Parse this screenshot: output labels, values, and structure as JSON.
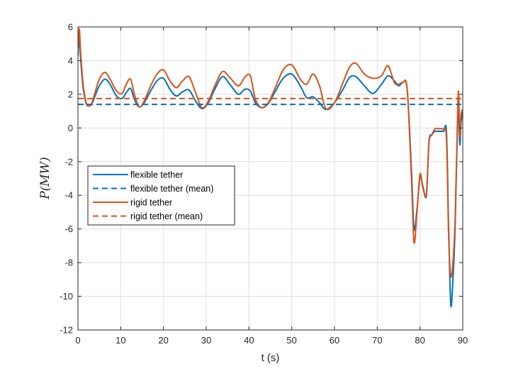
{
  "chart_data": {
    "type": "line",
    "title": "",
    "xlabel": "t (s)",
    "ylabel": "P(MW)",
    "xlim": [
      0,
      90
    ],
    "ylim": [
      -12,
      6
    ],
    "grid": true,
    "legend_position": "middle-left",
    "xticks": [
      0,
      10,
      20,
      30,
      40,
      50,
      60,
      70,
      80,
      90
    ],
    "yticks": [
      -12,
      -10,
      -8,
      -6,
      -4,
      -2,
      0,
      2,
      4,
      6
    ],
    "series": [
      {
        "name": "flexible tether",
        "color": "#0072BD",
        "style": "solid",
        "x": [
          0,
          0.3,
          0.6,
          0.9,
          1.2,
          1.6,
          2.0,
          2.5,
          3.2,
          4.0,
          5.0,
          6.3,
          7.5,
          9.0,
          10.3,
          11.3,
          12.3,
          13.2,
          14.3,
          15.5,
          17.0,
          18.5,
          20.0,
          21.5,
          23.0,
          24.5,
          26.0,
          27.5,
          29.0,
          30.5,
          32.0,
          33.8,
          35.5,
          37.5,
          39.0,
          40.3,
          41.5,
          43.0,
          44.5,
          46.0,
          48.0,
          50.0,
          52.0,
          53.5,
          55.0,
          56.5,
          58.0,
          60.0,
          62.0,
          63.5,
          65.0,
          67.0,
          69.0,
          71.0,
          72.5,
          74.0,
          75.0,
          76.0,
          77.0,
          78.0,
          78.6,
          79.3,
          80.0,
          80.7,
          81.5,
          82.1,
          82.8,
          83.5,
          84.5,
          85.5,
          86.2,
          86.7,
          87.2,
          87.7,
          88.2,
          88.7,
          89.0,
          89.3,
          89.6,
          90.0
        ],
        "y": [
          4.3,
          5.4,
          4.2,
          3.2,
          2.4,
          1.8,
          1.4,
          1.3,
          1.4,
          1.9,
          2.5,
          2.9,
          2.6,
          1.9,
          1.75,
          2.1,
          2.35,
          1.7,
          1.25,
          1.5,
          2.2,
          2.8,
          2.95,
          2.3,
          1.9,
          2.15,
          2.25,
          1.6,
          1.15,
          1.5,
          2.3,
          3.05,
          2.6,
          2.0,
          2.3,
          2.2,
          1.5,
          1.2,
          1.45,
          2.1,
          2.95,
          3.2,
          2.5,
          1.8,
          1.85,
          1.5,
          1.1,
          1.5,
          2.3,
          3.0,
          3.05,
          2.5,
          2.05,
          2.6,
          3.1,
          2.8,
          2.5,
          2.7,
          2.3,
          -2.5,
          -6.0,
          -4.8,
          -2.9,
          -3.5,
          -4.0,
          -0.8,
          -0.4,
          -0.2,
          -0.2,
          -0.2,
          -0.3,
          -6.0,
          -10.5,
          -9.0,
          -6.0,
          -0.5,
          1.0,
          -1.0,
          0.3,
          1.0
        ]
      },
      {
        "name": "flexible tether (mean)",
        "color": "#0072BD",
        "style": "dashed",
        "x": [
          0,
          90
        ],
        "y": [
          1.4,
          1.4
        ]
      },
      {
        "name": "rigid tether",
        "color": "#D95319",
        "style": "solid",
        "x": [
          0,
          0.3,
          0.6,
          0.9,
          1.2,
          1.6,
          2.0,
          2.5,
          3.2,
          4.0,
          5.0,
          6.3,
          7.5,
          9.0,
          10.3,
          11.3,
          12.3,
          13.2,
          14.3,
          15.5,
          17.0,
          18.5,
          20.0,
          21.5,
          23.0,
          24.5,
          26.0,
          27.5,
          29.0,
          30.5,
          32.0,
          33.8,
          35.5,
          37.5,
          39.0,
          40.3,
          41.5,
          43.0,
          44.5,
          46.0,
          48.0,
          50.0,
          52.0,
          53.5,
          55.0,
          56.5,
          58.0,
          60.0,
          62.0,
          63.5,
          65.0,
          67.0,
          69.0,
          71.0,
          72.5,
          74.0,
          75.0,
          76.0,
          77.0,
          78.0,
          78.6,
          79.3,
          80.0,
          80.7,
          81.5,
          82.1,
          82.8,
          83.5,
          84.5,
          85.5,
          86.2,
          86.7,
          87.2,
          87.7,
          88.2,
          88.7,
          89.0,
          89.3,
          89.6,
          90.0
        ],
        "y": [
          4.5,
          5.9,
          4.6,
          3.5,
          2.6,
          1.9,
          1.45,
          1.3,
          1.45,
          2.1,
          2.9,
          3.3,
          2.9,
          2.2,
          2.05,
          2.6,
          2.9,
          2.0,
          1.25,
          1.6,
          2.5,
          3.2,
          3.45,
          2.8,
          2.4,
          2.8,
          3.05,
          2.1,
          1.2,
          1.6,
          2.5,
          3.35,
          3.0,
          2.5,
          3.0,
          3.1,
          1.7,
          1.2,
          1.5,
          2.3,
          3.45,
          3.75,
          2.9,
          2.6,
          3.2,
          2.5,
          1.15,
          1.5,
          2.7,
          3.6,
          3.85,
          3.2,
          2.95,
          3.1,
          3.7,
          2.7,
          2.6,
          2.7,
          2.3,
          -3.0,
          -6.8,
          -5.0,
          -2.75,
          -3.6,
          -3.9,
          -0.9,
          -0.4,
          -0.05,
          -0.05,
          -0.1,
          -0.7,
          -6.5,
          -8.8,
          -8.0,
          -5.5,
          -0.2,
          2.2,
          -0.5,
          0.8,
          1.1
        ]
      },
      {
        "name": "rigid tether (mean)",
        "color": "#D95319",
        "style": "dashed",
        "x": [
          0,
          90
        ],
        "y": [
          1.75,
          1.75
        ]
      }
    ]
  }
}
